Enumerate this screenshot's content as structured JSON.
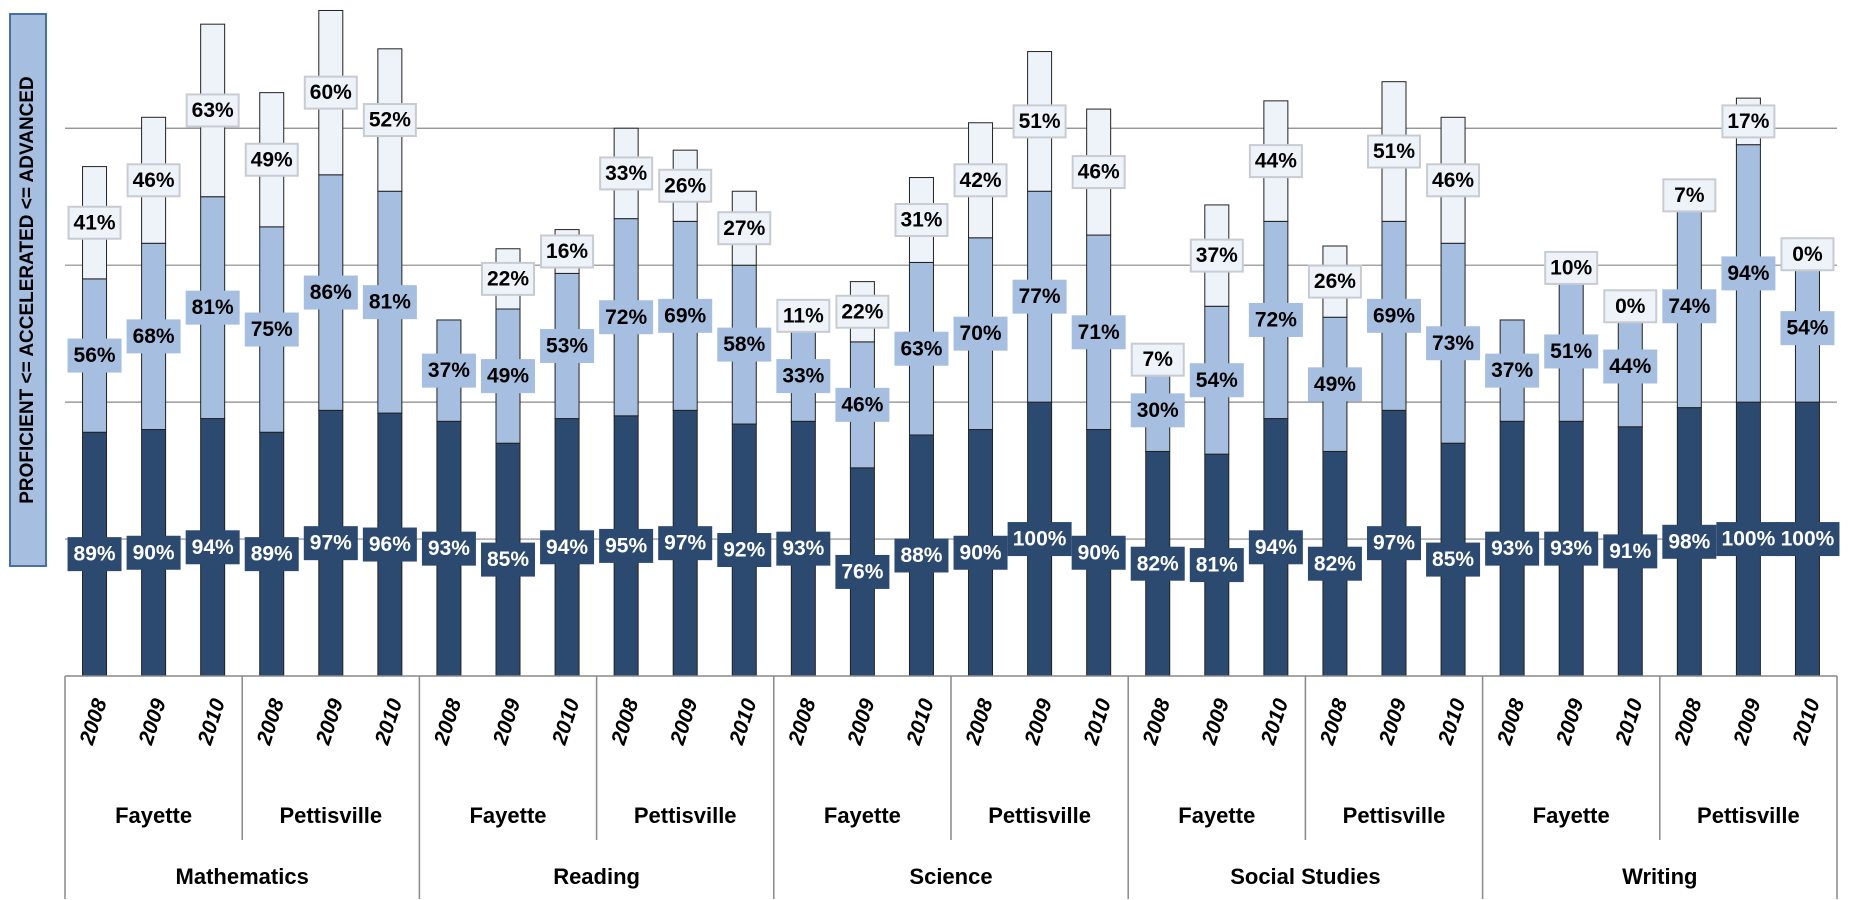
{
  "chart_data": {
    "type": "stacked-bar",
    "y_label": "PROFICIENT <= ACCELERATED <= ADVANCED",
    "categories": [
      "2008",
      "2009",
      "2010",
      "2008",
      "2009",
      "2010",
      "2008",
      "2009",
      "2010",
      "2008",
      "2009",
      "2010",
      "2008",
      "2009",
      "2010",
      "2008",
      "2009",
      "2010",
      "2008",
      "2009",
      "2010",
      "2008",
      "2009",
      "2010",
      "2008",
      "2009",
      "2010",
      "2008",
      "2009",
      "2010"
    ],
    "schools": [
      "Fayette",
      "Pettisville",
      "Fayette",
      "Pettisville",
      "Fayette",
      "Pettisville",
      "Fayette",
      "Pettisville",
      "Fayette",
      "Pettisville"
    ],
    "subjects": [
      "Mathematics",
      "Reading",
      "Science",
      "Social Studies",
      "Writing"
    ],
    "ylim": [
      0,
      245
    ],
    "yticks": [
      50,
      100,
      150,
      200
    ],
    "grid": true,
    "series": [
      {
        "color": "#2c4a70",
        "label_color": "#ffffff",
        "values": [
          89,
          90,
          94,
          89,
          97,
          96,
          93,
          85,
          94,
          95,
          97,
          92,
          93,
          76,
          88,
          90,
          100,
          90,
          82,
          81,
          94,
          82,
          97,
          85,
          93,
          93,
          91,
          98,
          100,
          100
        ],
        "value_labels": [
          "89%",
          "90%",
          "94%",
          "89%",
          "97%",
          "96%",
          "93%",
          "85%",
          "94%",
          "95%",
          "97%",
          "92%",
          "93%",
          "76%",
          "88%",
          "90%",
          "100%",
          "90%",
          "82%",
          "81%",
          "94%",
          "82%",
          "97%",
          "85%",
          "93%",
          "93%",
          "91%",
          "98%",
          "100%",
          "100%"
        ]
      },
      {
        "color": "#a6bee0",
        "label_color": "#000000",
        "values": [
          56,
          68,
          81,
          75,
          86,
          81,
          37,
          49,
          53,
          72,
          69,
          58,
          33,
          46,
          63,
          70,
          77,
          71,
          30,
          54,
          72,
          49,
          69,
          73,
          37,
          51,
          44,
          74,
          94,
          54
        ],
        "value_labels": [
          "56%",
          "68%",
          "81%",
          "75%",
          "86%",
          "81%",
          "37%",
          "49%",
          "53%",
          "72%",
          "69%",
          "58%",
          "33%",
          "46%",
          "63%",
          "70%",
          "77%",
          "71%",
          "30%",
          "54%",
          "72%",
          "49%",
          "69%",
          "73%",
          "37%",
          "51%",
          "44%",
          "74%",
          "94%",
          "54%"
        ]
      },
      {
        "color": "#eef3fa",
        "label_color": "#000000",
        "values": [
          41,
          46,
          63,
          49,
          60,
          52,
          null,
          22,
          16,
          33,
          26,
          27,
          11,
          22,
          31,
          42,
          51,
          46,
          7,
          37,
          44,
          26,
          51,
          46,
          null,
          10,
          0,
          7,
          17,
          0
        ],
        "value_labels": [
          "41%",
          "46%",
          "63%",
          "49%",
          "60%",
          "52%",
          null,
          "22%",
          "16%",
          "33%",
          "26%",
          "27%",
          "11%",
          "22%",
          "31%",
          "42%",
          "51%",
          "46%",
          "7%",
          "37%",
          "44%",
          "26%",
          "51%",
          "46%",
          null,
          "10%",
          "0%",
          "7%",
          "17%",
          "0%"
        ]
      }
    ]
  }
}
